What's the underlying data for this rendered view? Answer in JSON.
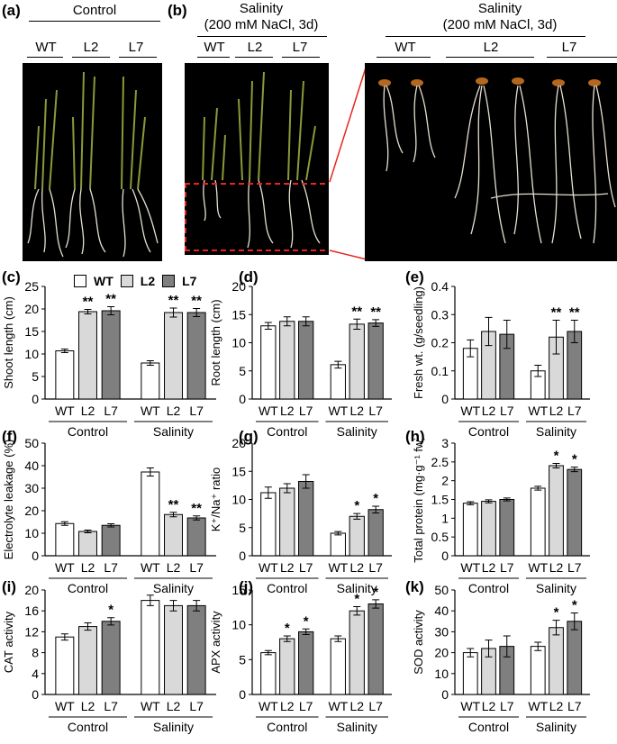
{
  "photos": {
    "a": {
      "label": "(a)",
      "title": "Control",
      "groups": [
        "WT",
        "L2",
        "L7"
      ]
    },
    "b": {
      "label": "(b)",
      "title_line1": "Salinity",
      "title_line2": "(200 mM NaCl, 3d)",
      "groups": [
        "WT",
        "L2",
        "L7"
      ]
    },
    "b_zoom": {
      "title_line1": "Salinity",
      "title_line2": "(200 mM NaCl, 3d)",
      "groups": [
        "WT",
        "L2",
        "L7"
      ]
    }
  },
  "legend": [
    "WT",
    "L2",
    "L7"
  ],
  "colors": {
    "WT": "#ffffff",
    "L2": "#d9d9d9",
    "L7": "#7f7f7f",
    "zoom_box": "#e8251f"
  },
  "chart_data": [
    {
      "id": "c",
      "label": "(c)",
      "type": "bar",
      "ylabel": "Shoot length (cm)",
      "ylim": [
        0,
        25
      ],
      "yticks": [
        0,
        5,
        10,
        15,
        20,
        25
      ],
      "groups": [
        "Control",
        "Salinity"
      ],
      "categories": [
        "WT",
        "L2",
        "L7"
      ],
      "values": [
        [
          10.7,
          19.4,
          19.6
        ],
        [
          8.0,
          19.2,
          19.2
        ]
      ],
      "errors": [
        [
          0.4,
          0.5,
          0.9
        ],
        [
          0.5,
          1.0,
          0.9
        ]
      ],
      "sig": [
        [
          "",
          "**",
          "**"
        ],
        [
          "",
          "**",
          "**"
        ]
      ]
    },
    {
      "id": "d",
      "label": "(d)",
      "type": "bar",
      "ylabel": "Root length (cm)",
      "ylim": [
        0,
        20
      ],
      "yticks": [
        0,
        5,
        10,
        15,
        20
      ],
      "groups": [
        "Control",
        "Salinity"
      ],
      "categories": [
        "WT",
        "L2",
        "L7"
      ],
      "values": [
        [
          13.0,
          13.8,
          13.8
        ],
        [
          6.1,
          13.3,
          13.5
        ]
      ],
      "errors": [
        [
          0.6,
          0.8,
          0.8
        ],
        [
          0.6,
          0.9,
          0.6
        ]
      ],
      "sig": [
        [
          "",
          "",
          ""
        ],
        [
          "",
          "**",
          "**"
        ]
      ]
    },
    {
      "id": "e",
      "label": "(e)",
      "type": "bar",
      "ylabel": "Fresh wt. (g/seedling)",
      "ylim": [
        0,
        0.4
      ],
      "yticks": [
        "0",
        "0.1",
        "0.2",
        "0.3",
        "0.4"
      ],
      "groups": [
        "Control",
        "Salinity"
      ],
      "categories": [
        "WT",
        "L2",
        "L7"
      ],
      "values": [
        [
          0.18,
          0.24,
          0.23
        ],
        [
          0.1,
          0.22,
          0.24
        ]
      ],
      "errors": [
        [
          0.03,
          0.05,
          0.05
        ],
        [
          0.02,
          0.06,
          0.04
        ]
      ],
      "sig": [
        [
          "",
          "",
          ""
        ],
        [
          "",
          "**",
          "**"
        ]
      ]
    },
    {
      "id": "f",
      "label": "(f)",
      "type": "bar",
      "ylabel": "Electrolyte leakage (%)",
      "ylim": [
        0,
        50
      ],
      "yticks": [
        0,
        10,
        20,
        30,
        40,
        50
      ],
      "groups": [
        "Control",
        "Salinity"
      ],
      "categories": [
        "WT",
        "L2",
        "L7"
      ],
      "values": [
        [
          14.3,
          10.8,
          13.5
        ],
        [
          37.2,
          18.3,
          16.8
        ]
      ],
      "errors": [
        [
          0.8,
          0.6,
          0.7
        ],
        [
          1.8,
          1.0,
          0.9
        ]
      ],
      "sig": [
        [
          "",
          "",
          ""
        ],
        [
          "",
          "**",
          "**"
        ]
      ]
    },
    {
      "id": "g",
      "label": "(g)",
      "type": "bar",
      "ylabel": "K⁺/Na⁺ ratio",
      "ylim": [
        0,
        20
      ],
      "yticks": [
        0,
        5,
        10,
        15,
        20
      ],
      "groups": [
        "Control",
        "Salinity"
      ],
      "categories": [
        "WT",
        "L2",
        "L7"
      ],
      "values": [
        [
          11.2,
          12.0,
          13.2
        ],
        [
          4.0,
          7.0,
          8.2
        ]
      ],
      "errors": [
        [
          1.0,
          0.8,
          1.2
        ],
        [
          0.3,
          0.5,
          0.6
        ]
      ],
      "sig": [
        [
          "",
          "",
          ""
        ],
        [
          "",
          "*",
          "*"
        ]
      ]
    },
    {
      "id": "h",
      "label": "(h)",
      "type": "bar",
      "ylabel": "Total protein (mg·g⁻¹ fw)",
      "ylim": [
        0,
        3
      ],
      "yticks": [
        "0",
        "0.5",
        "1",
        "1.5",
        "2",
        "2.5",
        "3"
      ],
      "groups": [
        "Control",
        "Salinity"
      ],
      "categories": [
        "WT",
        "L2",
        "L7"
      ],
      "values": [
        [
          1.4,
          1.45,
          1.5
        ],
        [
          1.8,
          2.4,
          2.3
        ]
      ],
      "errors": [
        [
          0.04,
          0.04,
          0.04
        ],
        [
          0.05,
          0.06,
          0.06
        ]
      ],
      "sig": [
        [
          "",
          "",
          ""
        ],
        [
          "",
          "*",
          "*"
        ]
      ]
    },
    {
      "id": "i",
      "label": "(i)",
      "type": "bar",
      "ylabel": "CAT activity",
      "ylim": [
        0,
        20
      ],
      "yticks": [
        0,
        4,
        8,
        12,
        16,
        20
      ],
      "groups": [
        "Control",
        "Salinity"
      ],
      "categories": [
        "WT",
        "L2",
        "L7"
      ],
      "values": [
        [
          11.0,
          13.0,
          14.0
        ],
        [
          18.0,
          17.0,
          17.0
        ]
      ],
      "errors": [
        [
          0.6,
          0.7,
          0.7
        ],
        [
          1.0,
          1.0,
          1.0
        ]
      ],
      "sig": [
        [
          "",
          "",
          "*"
        ],
        [
          "",
          "",
          ""
        ]
      ]
    },
    {
      "id": "j",
      "label": "(j)",
      "type": "bar",
      "ylabel": "APX  activity",
      "ylim": [
        0,
        15
      ],
      "yticks": [
        0,
        5,
        10,
        15
      ],
      "groups": [
        "Control",
        "Salinity"
      ],
      "categories": [
        "WT",
        "L2",
        "L7"
      ],
      "values": [
        [
          6.0,
          8.0,
          9.0
        ],
        [
          8.0,
          12.0,
          13.0
        ]
      ],
      "errors": [
        [
          0.3,
          0.4,
          0.4
        ],
        [
          0.4,
          0.6,
          0.6
        ]
      ],
      "sig": [
        [
          "",
          "*",
          "*"
        ],
        [
          "",
          "*",
          "*"
        ]
      ]
    },
    {
      "id": "k",
      "label": "(k)",
      "type": "bar",
      "ylabel": "SOD activity",
      "ylim": [
        0,
        50
      ],
      "yticks": [
        0,
        10,
        20,
        30,
        40,
        50
      ],
      "groups": [
        "Control",
        "Salinity"
      ],
      "categories": [
        "WT",
        "L2",
        "L7"
      ],
      "values": [
        [
          20.0,
          22.0,
          23.0
        ],
        [
          23.0,
          32.0,
          35.0
        ]
      ],
      "errors": [
        [
          2.0,
          4.0,
          5.0
        ],
        [
          2.0,
          3.5,
          4.0
        ]
      ],
      "sig": [
        [
          "",
          "",
          ""
        ],
        [
          "",
          "*",
          "*"
        ]
      ]
    }
  ]
}
